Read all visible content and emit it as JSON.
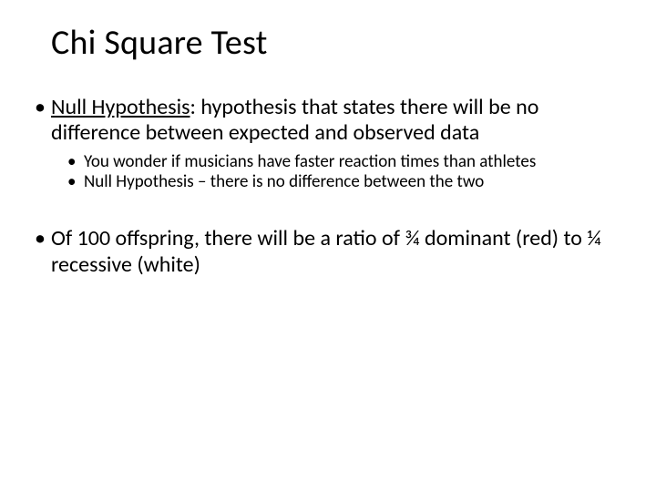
{
  "slide": {
    "title": "Chi Square Test",
    "bullets": [
      {
        "term": "Null Hypothesis",
        "rest": ": hypothesis that states there will be no difference between expected and observed data",
        "sub": [
          "You wonder if musicians have faster reaction times than athletes",
          "Null Hypothesis – there is no difference between the two"
        ]
      },
      {
        "text": "Of 100 offspring, there will be a ratio of ¾ dominant (red) to ¼ recessive (white)"
      }
    ]
  },
  "style": {
    "background_color": "#ffffff",
    "text_color": "#000000",
    "font_family": "Calibri",
    "title_fontsize": 38,
    "level1_fontsize": 24,
    "level2_fontsize": 19
  }
}
